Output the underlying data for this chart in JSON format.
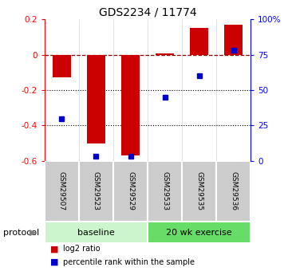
{
  "title": "GDS2234 / 11774",
  "samples": [
    "GSM29507",
    "GSM29523",
    "GSM29529",
    "GSM29533",
    "GSM29535",
    "GSM29536"
  ],
  "log2_ratio": [
    -0.13,
    -0.5,
    -0.57,
    0.005,
    0.15,
    0.17
  ],
  "percentile_rank": [
    30,
    3,
    3,
    45,
    60,
    78
  ],
  "bar_color": "#cc0000",
  "dot_color": "#0000cc",
  "ylim": [
    -0.6,
    0.2
  ],
  "yticks_left": [
    -0.6,
    -0.4,
    -0.2,
    0.0,
    0.2
  ],
  "ytick_labels_left": [
    "-0.6",
    "-0.4",
    "-0.2",
    "0",
    "0.2"
  ],
  "yticks_right": [
    0,
    25,
    50,
    75,
    100
  ],
  "ytick_labels_right": [
    "0",
    "25",
    "50",
    "75",
    "100%"
  ],
  "group_labels": [
    "baseline",
    "20 wk exercise"
  ],
  "group_ranges": [
    [
      0,
      3
    ],
    [
      3,
      6
    ]
  ],
  "group_colors_light": [
    "#ccf5cc",
    "#66dd66"
  ],
  "protocol_label": "protocol",
  "legend_red": "log2 ratio",
  "legend_blue": "percentile rank within the sample",
  "bar_width": 0.55,
  "dotted_lines": [
    -0.2,
    -0.4
  ],
  "title_fontsize": 10,
  "tick_fontsize": 7.5,
  "sample_fontsize": 6.5,
  "group_fontsize": 8,
  "legend_fontsize": 7
}
